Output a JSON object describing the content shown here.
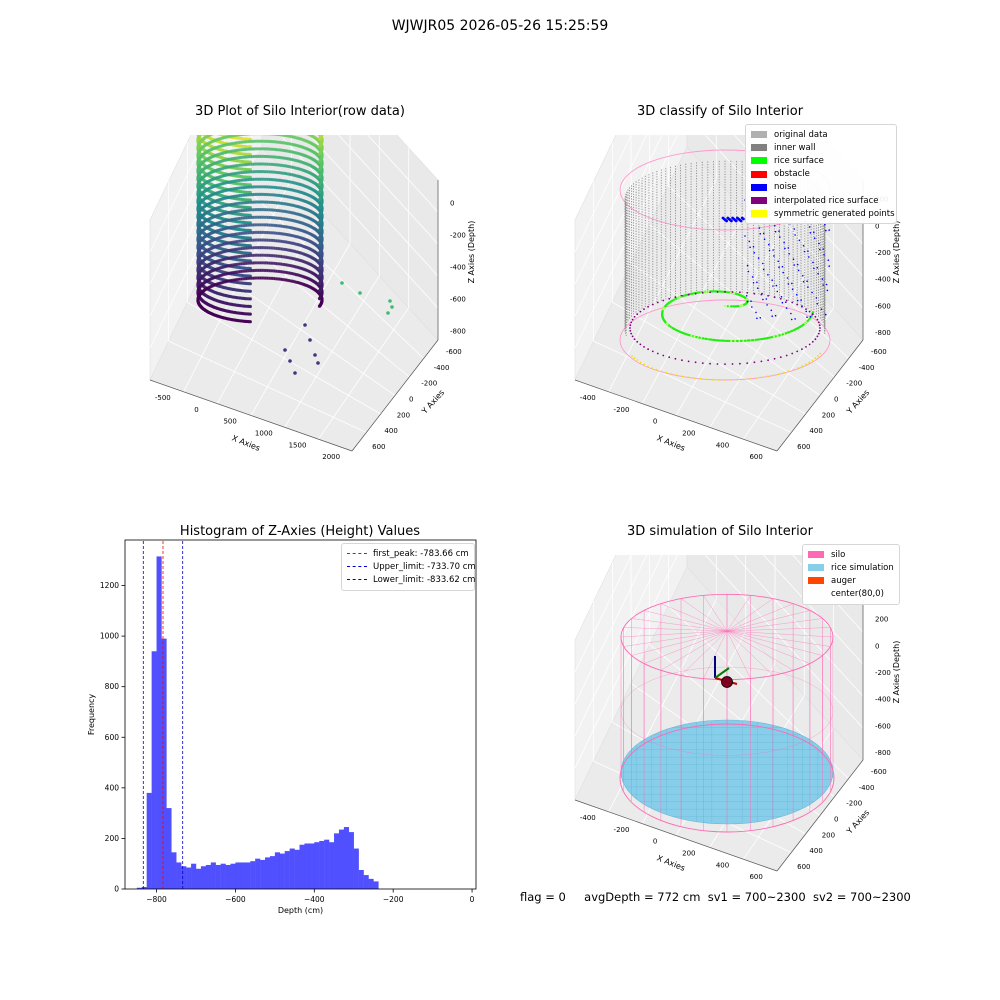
{
  "suptitle": "WJWJR05 2026-05-26 15:25:59",
  "footer": {
    "flag": "flag = 0",
    "avg_depth": "avgDepth = 772 cm",
    "sv1": "sv1 = 700~2300",
    "sv2": "sv2 = 700~2300"
  },
  "colors": {
    "histogram_bars": "#4c4cff",
    "first_peak_line": "#ff0000",
    "limit_lines": "#0000cc",
    "silo": "#ff69b4",
    "rice_simulation": "#87ceeb",
    "auger": "#ff4500",
    "original_data": "#b0b0b0",
    "inner_wall": "#808080",
    "rice_surface": "#00ff00",
    "obstacle": "#ff0000",
    "noise": "#0000ff",
    "interpolated_rice_surface": "#800080",
    "symmetric_generated_points": "#ffff00"
  },
  "chart_data": [
    {
      "type": "scatter",
      "projection": "3d",
      "title": "3D Plot of Silo Interior(row data)",
      "xlabel": "X Axies",
      "ylabel": "Y Axies",
      "zlabel": "Z Axies (Depth)",
      "x_ticks": [
        "-500",
        "0",
        "500",
        "1000",
        "1500",
        "2000"
      ],
      "y_ticks": [
        "-600",
        "-400",
        "-200",
        "0",
        "200",
        "400",
        "600"
      ],
      "z_ticks": [
        "0",
        "-200",
        "-400",
        "-600",
        "-800"
      ],
      "xlim": [
        -600,
        2000
      ],
      "ylim": [
        -650,
        650
      ],
      "zlim": [
        -950,
        50
      ],
      "colormap": "viridis (colored by depth)",
      "description_points": "cylindrical wall of points radius ~550 centered near (0,0) spanning depth -900 to -50, plus scattered outliers near x 500-1700"
    },
    {
      "type": "scatter",
      "projection": "3d",
      "title": "3D classify of Silo Interior",
      "xlabel": "X Axies",
      "ylabel": "Y Axies",
      "zlabel": "Z Axies (Depth)",
      "x_ticks": [
        "-400",
        "-200",
        "0",
        "200",
        "400",
        "600"
      ],
      "y_ticks": [
        "-600",
        "-400",
        "-200",
        "0",
        "200",
        "400",
        "600"
      ],
      "z_ticks": [
        "200",
        "0",
        "-200",
        "-400",
        "-600",
        "-800"
      ],
      "xlim": [
        -500,
        700
      ],
      "ylim": [
        -650,
        650
      ],
      "zlim": [
        -900,
        250
      ],
      "legend": [
        "original data",
        "inner wall",
        "rice surface",
        "obstacle",
        "noise",
        "interpolated rice surface",
        "symmetric generated points"
      ],
      "legend_position": "top-right"
    },
    {
      "type": "bar",
      "title": "Histogram of Z-Axies (Height) Values",
      "xlabel": "Depth (cm)",
      "ylabel": "Frequency",
      "xlim": [
        -880,
        10
      ],
      "ylim": [
        0,
        1380
      ],
      "x_ticks": [
        -800,
        -600,
        -400,
        -200,
        0
      ],
      "y_ticks": [
        0,
        200,
        400,
        600,
        800,
        1000,
        1200
      ],
      "bin_edges_start": -850,
      "bin_width": 12.5,
      "values": [
        5,
        8,
        380,
        940,
        1315,
        990,
        320,
        145,
        105,
        90,
        85,
        100,
        80,
        90,
        95,
        105,
        95,
        100,
        95,
        100,
        105,
        105,
        105,
        110,
        120,
        115,
        125,
        130,
        145,
        140,
        150,
        160,
        155,
        175,
        180,
        180,
        185,
        190,
        195,
        185,
        220,
        235,
        245,
        225,
        160,
        75,
        55,
        40,
        30
      ],
      "vlines": [
        {
          "label": "first_peak: -783.66 cm",
          "x": -783.66,
          "style": "dashed",
          "color": "red"
        },
        {
          "label": "Upper_limit: -733.70 cm",
          "x": -733.7,
          "style": "dashed",
          "color": "blue"
        },
        {
          "label": "Lower_limit: -833.62 cm",
          "x": -833.62,
          "style": "dashed",
          "color": "blue"
        }
      ],
      "legend_position": "top-right"
    },
    {
      "type": "surface",
      "projection": "3d",
      "title": "3D simulation of Silo Interior",
      "xlabel": "X Axies",
      "ylabel": "Y Axies",
      "zlabel": "Z Axies (Depth)",
      "x_ticks": [
        "-400",
        "-200",
        "0",
        "200",
        "400",
        "600"
      ],
      "y_ticks": [
        "-600",
        "-400",
        "-200",
        "0",
        "200",
        "400",
        "600"
      ],
      "z_ticks": [
        "200",
        "0",
        "-200",
        "-400",
        "-600",
        "-800"
      ],
      "xlim": [
        -500,
        700
      ],
      "ylim": [
        -650,
        650
      ],
      "zlim": [
        -900,
        300
      ],
      "legend": [
        "silo",
        "rice simulation",
        "auger",
        "center(80,0)"
      ],
      "legend_position": "top-right",
      "silo_radius": 550,
      "silo_top": 100,
      "silo_bottom": -800,
      "rice_level": -772
    }
  ]
}
